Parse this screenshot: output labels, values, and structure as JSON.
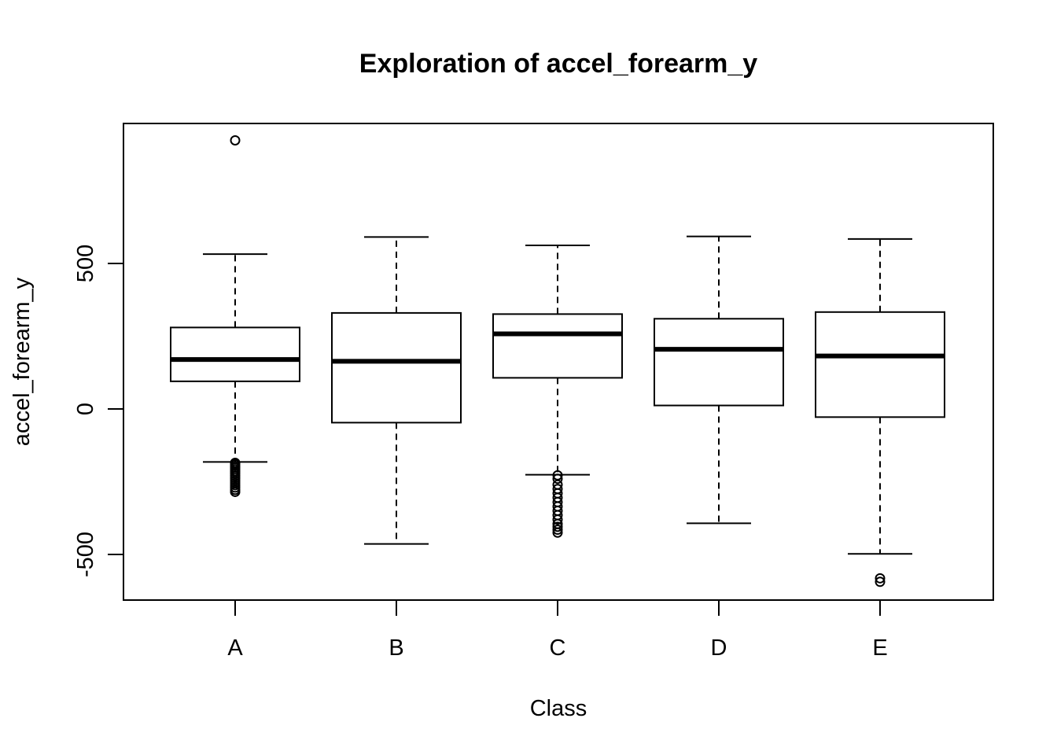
{
  "chart_data": {
    "type": "box",
    "title": "Exploration of  accel_forearm_y",
    "xlabel": "Class",
    "ylabel": "accel_forearm_y",
    "categories": [
      "A",
      "B",
      "C",
      "D",
      "E"
    ],
    "ylim": [
      -660,
      970
    ],
    "yticks": [
      -500,
      0,
      500
    ],
    "ytick_labels": [
      "-500",
      "0",
      "500"
    ],
    "grid": false,
    "boxes": [
      {
        "category": "A",
        "whisker_low": -182,
        "q1": 95,
        "median": 170,
        "q3": 280,
        "whisker_high": 532,
        "outliers": [
          923,
          -185,
          -190,
          -196,
          -202,
          -208,
          -215,
          -222,
          -230,
          -238,
          -246,
          -254,
          -262,
          -270,
          -278,
          -285
        ]
      },
      {
        "category": "B",
        "whisker_low": -464,
        "q1": -47,
        "median": 164,
        "q3": 330,
        "whisker_high": 591,
        "outliers": []
      },
      {
        "category": "C",
        "whisker_low": -226,
        "q1": 107,
        "median": 258,
        "q3": 326,
        "whisker_high": 562,
        "outliers": [
          -228,
          -240,
          -260,
          -275,
          -290,
          -305,
          -320,
          -335,
          -350,
          -365,
          -380,
          -395,
          -405,
          -415,
          -425
        ]
      },
      {
        "category": "D",
        "whisker_low": -393,
        "q1": 12,
        "median": 205,
        "q3": 310,
        "whisker_high": 593,
        "outliers": []
      },
      {
        "category": "E",
        "whisker_low": -498,
        "q1": -28,
        "median": 182,
        "q3": 333,
        "whisker_high": 584,
        "outliers": [
          -582,
          -594
        ]
      }
    ]
  }
}
